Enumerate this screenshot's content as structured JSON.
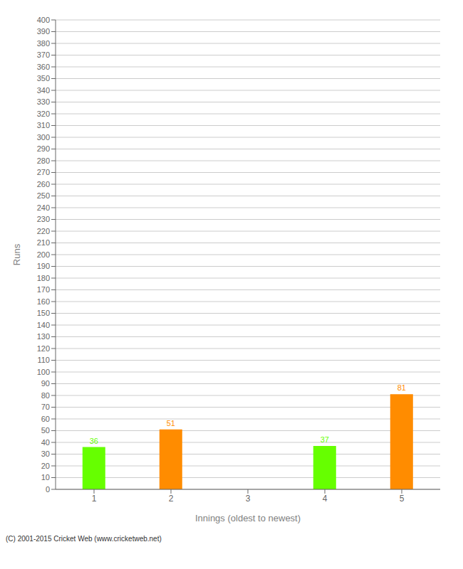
{
  "chart_data": {
    "type": "bar",
    "xlabel": "Innings (oldest to newest)",
    "ylabel": "Runs",
    "categories": [
      "1",
      "2",
      "3",
      "4",
      "5"
    ],
    "values": [
      36,
      51,
      0,
      37,
      81
    ],
    "colors": [
      "#66ff00",
      "#ff8c00",
      "#66ff00",
      "#66ff00",
      "#ff8c00"
    ],
    "ylim": [
      0,
      400
    ],
    "yticks": [
      0,
      10,
      20,
      30,
      40,
      50,
      60,
      70,
      80,
      90,
      100,
      110,
      120,
      130,
      140,
      150,
      160,
      170,
      180,
      190,
      200,
      210,
      220,
      230,
      240,
      250,
      260,
      270,
      280,
      290,
      300,
      310,
      320,
      330,
      340,
      350,
      360,
      370,
      380,
      390,
      400
    ],
    "grid": true,
    "data_labels": true,
    "annotations": [
      "(C) 2001-2015 Cricket Web (www.cricketweb.net)"
    ]
  }
}
